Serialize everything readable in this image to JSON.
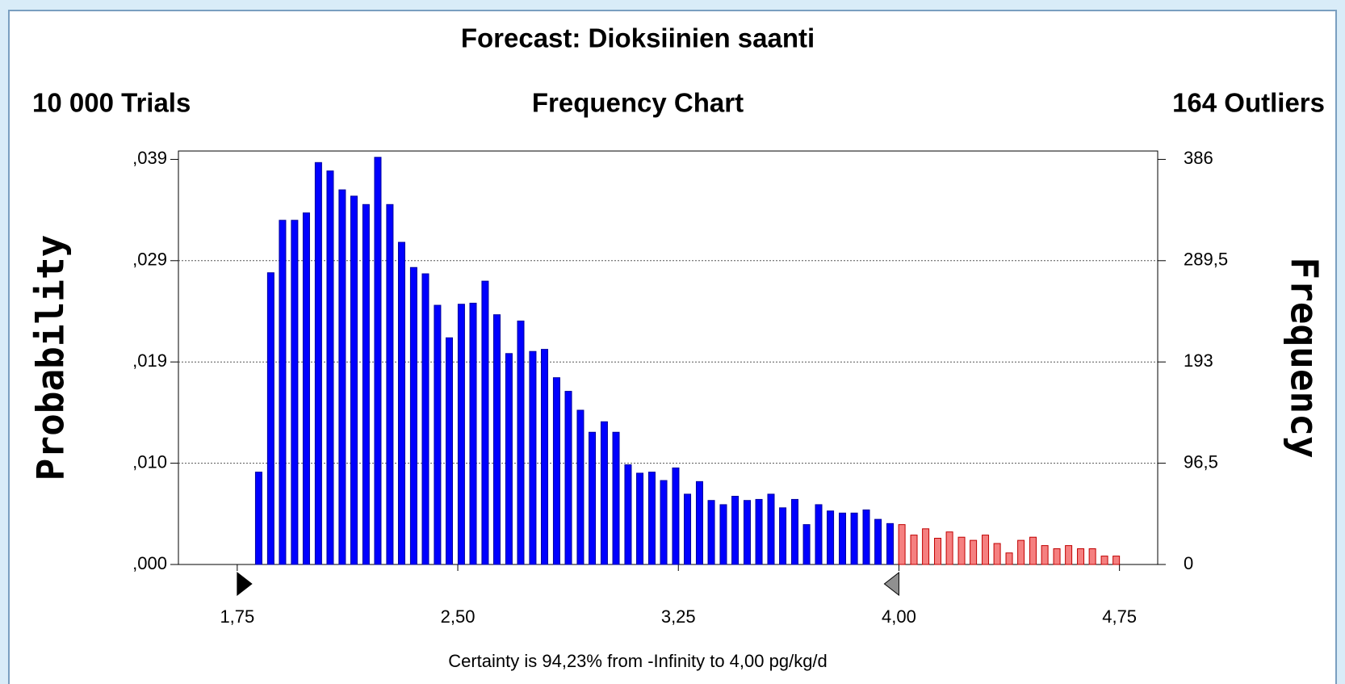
{
  "chart_data": {
    "type": "bar",
    "title": "Forecast: Dioksiinien saanti",
    "left_header": "10 000 Trials",
    "subtitle": "Frequency Chart",
    "right_header": "164 Outliers",
    "ylabel": "Probability",
    "y2label": "Frequency",
    "footer": "Certainty is 94,23% from -Infinity to 4,00 pg/kg/d",
    "x": [
      1.823,
      1.864,
      1.904,
      1.945,
      1.985,
      2.026,
      2.066,
      2.107,
      2.147,
      2.188,
      2.228,
      2.269,
      2.309,
      2.35,
      2.39,
      2.431,
      2.471,
      2.512,
      2.552,
      2.593,
      2.633,
      2.674,
      2.714,
      2.755,
      2.795,
      2.836,
      2.876,
      2.917,
      2.957,
      2.998,
      3.038,
      3.079,
      3.119,
      3.16,
      3.2,
      3.241,
      3.281,
      3.322,
      3.362,
      3.403,
      3.443,
      3.484,
      3.524,
      3.565,
      3.605,
      3.646,
      3.686,
      3.727,
      3.767,
      3.808,
      3.848,
      3.889,
      3.929,
      3.97,
      4.01,
      4.051,
      4.091,
      4.132,
      4.172,
      4.213,
      4.253,
      4.294,
      4.334,
      4.375,
      4.415,
      4.456,
      4.496,
      4.537,
      4.577,
      4.618,
      4.658,
      4.699,
      4.739
    ],
    "values": [
      88,
      278,
      328,
      328,
      335,
      383,
      375,
      357,
      351,
      343,
      388,
      343,
      307,
      283,
      277,
      247,
      216,
      248,
      249,
      270,
      238,
      201,
      232,
      203,
      205,
      178,
      165,
      147,
      126,
      136,
      126,
      95,
      87,
      88,
      80,
      92,
      67,
      79,
      61,
      57,
      65,
      61,
      62,
      67,
      54,
      62,
      38,
      57,
      51,
      49,
      49,
      52,
      43,
      39,
      38,
      28,
      34,
      25,
      31,
      26,
      23,
      28,
      20,
      11,
      23,
      26,
      18,
      15,
      18,
      15,
      15,
      8,
      8
    ],
    "axis": "y2",
    "color": "#0000ff",
    "outlier_color": "#f58080",
    "markers": [
      1.75,
      4.0
    ],
    "xlim": [
      1.55,
      4.88
    ],
    "xticks": [
      {
        "value": 1.75,
        "label": "1,75"
      },
      {
        "value": 2.5,
        "label": "2,50"
      },
      {
        "value": 3.25,
        "label": "3,25"
      },
      {
        "value": 4.0,
        "label": "4,00"
      },
      {
        "value": 4.75,
        "label": "4,75"
      }
    ],
    "ylim": [
      0,
      0.0394
    ],
    "yticks": [
      {
        "value": 0,
        "label": ",000"
      },
      {
        "value": 0.00965,
        "label": ",010"
      },
      {
        "value": 0.0193,
        "label": ",019"
      },
      {
        "value": 0.02895,
        "label": ",029"
      },
      {
        "value": 0.0386,
        "label": ",039"
      }
    ],
    "y2lim": [
      0,
      394
    ],
    "y2ticks": [
      0,
      {
        "value": 96.5,
        "label": "96,5"
      },
      193,
      {
        "value": 289.5,
        "label": "289,5"
      },
      386
    ],
    "grid": true
  }
}
